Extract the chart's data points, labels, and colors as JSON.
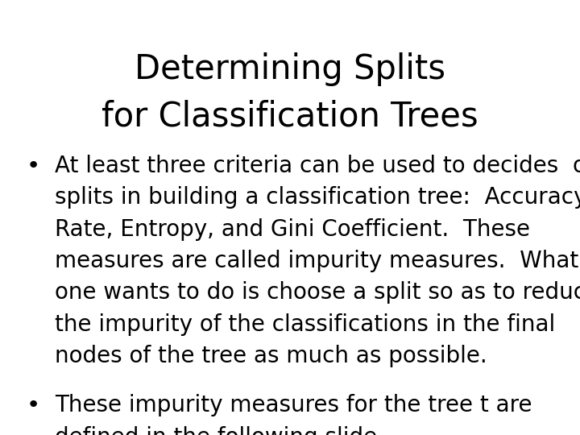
{
  "title_line1": "Determining Splits",
  "title_line2": "for Classification Trees",
  "bullet1_lines": [
    "At least three criteria can be used to decides  on",
    "splits in building a classification tree:  Accuracy",
    "Rate, Entropy, and Gini Coefficient.  These",
    "measures are called impurity measures.  What",
    "one wants to do is choose a split so as to reduce",
    "the impurity of the classifications in the final",
    "nodes of the tree as much as possible."
  ],
  "bullet2_lines": [
    "These impurity measures for the tree t are",
    "defined in the following slide."
  ],
  "background_color": "#ffffff",
  "text_color": "#000000",
  "title_fontsize": 30,
  "body_fontsize": 20,
  "font_family": "DejaVu Sans"
}
